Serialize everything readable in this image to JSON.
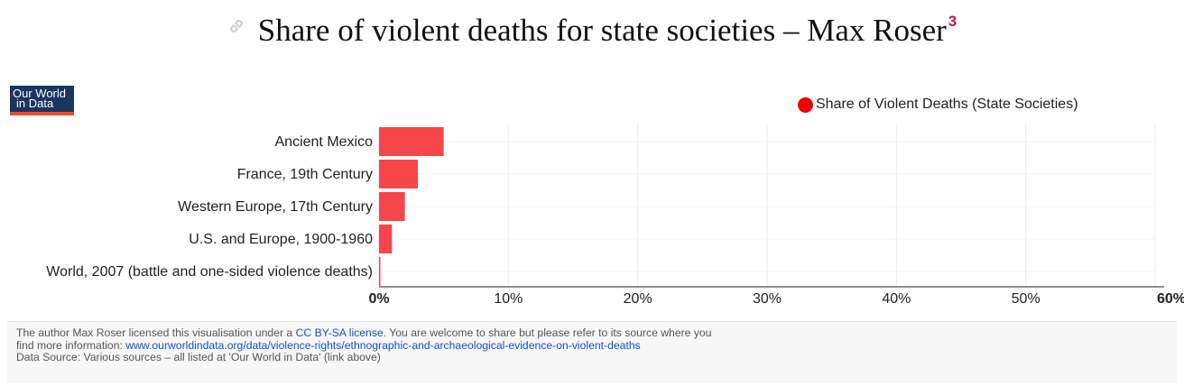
{
  "heading": {
    "link_icon": "link-icon",
    "title": "Share of violent deaths for state societies – Max Roser",
    "footnote": "3"
  },
  "logo": {
    "line1": "Our World",
    "line2": "in Data"
  },
  "colors": {
    "bar": "#f5464b",
    "legend_dot": "#f00000",
    "axis": "#222222",
    "grid": "#eeeeee"
  },
  "chart_data": {
    "type": "bar",
    "orientation": "horizontal",
    "categories": [
      "Ancient Mexico",
      "France, 19th Century",
      "Western Europe, 17th Century",
      "U.S. and Europe, 1900-1960",
      "World, 2007 (battle and one-sided violence deaths)"
    ],
    "series": [
      {
        "name": "Share of Violent Deaths (State Societies)",
        "values": [
          5,
          3,
          2,
          1,
          0.04
        ]
      }
    ],
    "xlim": [
      0,
      60
    ],
    "ticks": [
      0,
      10,
      20,
      30,
      40,
      50,
      60
    ],
    "tick_labels": [
      "0%",
      "10%",
      "20%",
      "30%",
      "40%",
      "50%",
      "60%"
    ],
    "legend_position": "top-right",
    "grid": true
  },
  "footer": {
    "line1_a": "The author Max Roser licensed this visualisation under a ",
    "license_link": "CC BY-SA license",
    "line1_b": ". You are welcome to share but please refer to its source where you",
    "line2_a": "find more information: ",
    "source_link": "www.ourworldindata.org/data/violence-rights/ethnographic-and-archaeological-evidence-on-violent-deaths",
    "line3": "Data Source: Various sources – all listed at 'Our World in Data' (link above)"
  }
}
